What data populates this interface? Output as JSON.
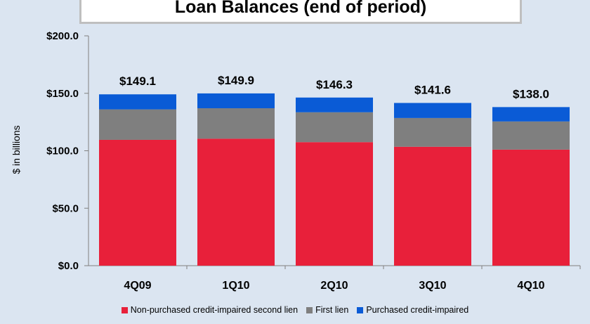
{
  "chart_data": {
    "type": "bar",
    "stacked": true,
    "title": "Loan Balances (end of period)",
    "ylabel": "$ in billions",
    "ylim": [
      0,
      200
    ],
    "y_ticks": [
      "$0.0",
      "$50.0",
      "$100.0",
      "$150.0",
      "$200.0"
    ],
    "y_tick_values": [
      0,
      50,
      100,
      150,
      200
    ],
    "categories": [
      "4Q09",
      "1Q10",
      "2Q10",
      "3Q10",
      "4Q10"
    ],
    "totals": [
      "$149.1",
      "$149.9",
      "$146.3",
      "$141.6",
      "$138.0"
    ],
    "series": [
      {
        "name": "Non-purchased credit-impaired second lien",
        "color": "#e8203a",
        "values": [
          109.5,
          110.5,
          107.5,
          103.5,
          101.0
        ]
      },
      {
        "name": "First lien",
        "color": "#7f7f7f",
        "values": [
          26.5,
          26.5,
          26.0,
          25.0,
          24.5
        ]
      },
      {
        "name": "Purchased credit-impaired",
        "color": "#0a5bd6",
        "values": [
          13.1,
          12.9,
          12.8,
          13.1,
          12.5
        ]
      }
    ],
    "grid": false,
    "legend_position": "bottom"
  }
}
